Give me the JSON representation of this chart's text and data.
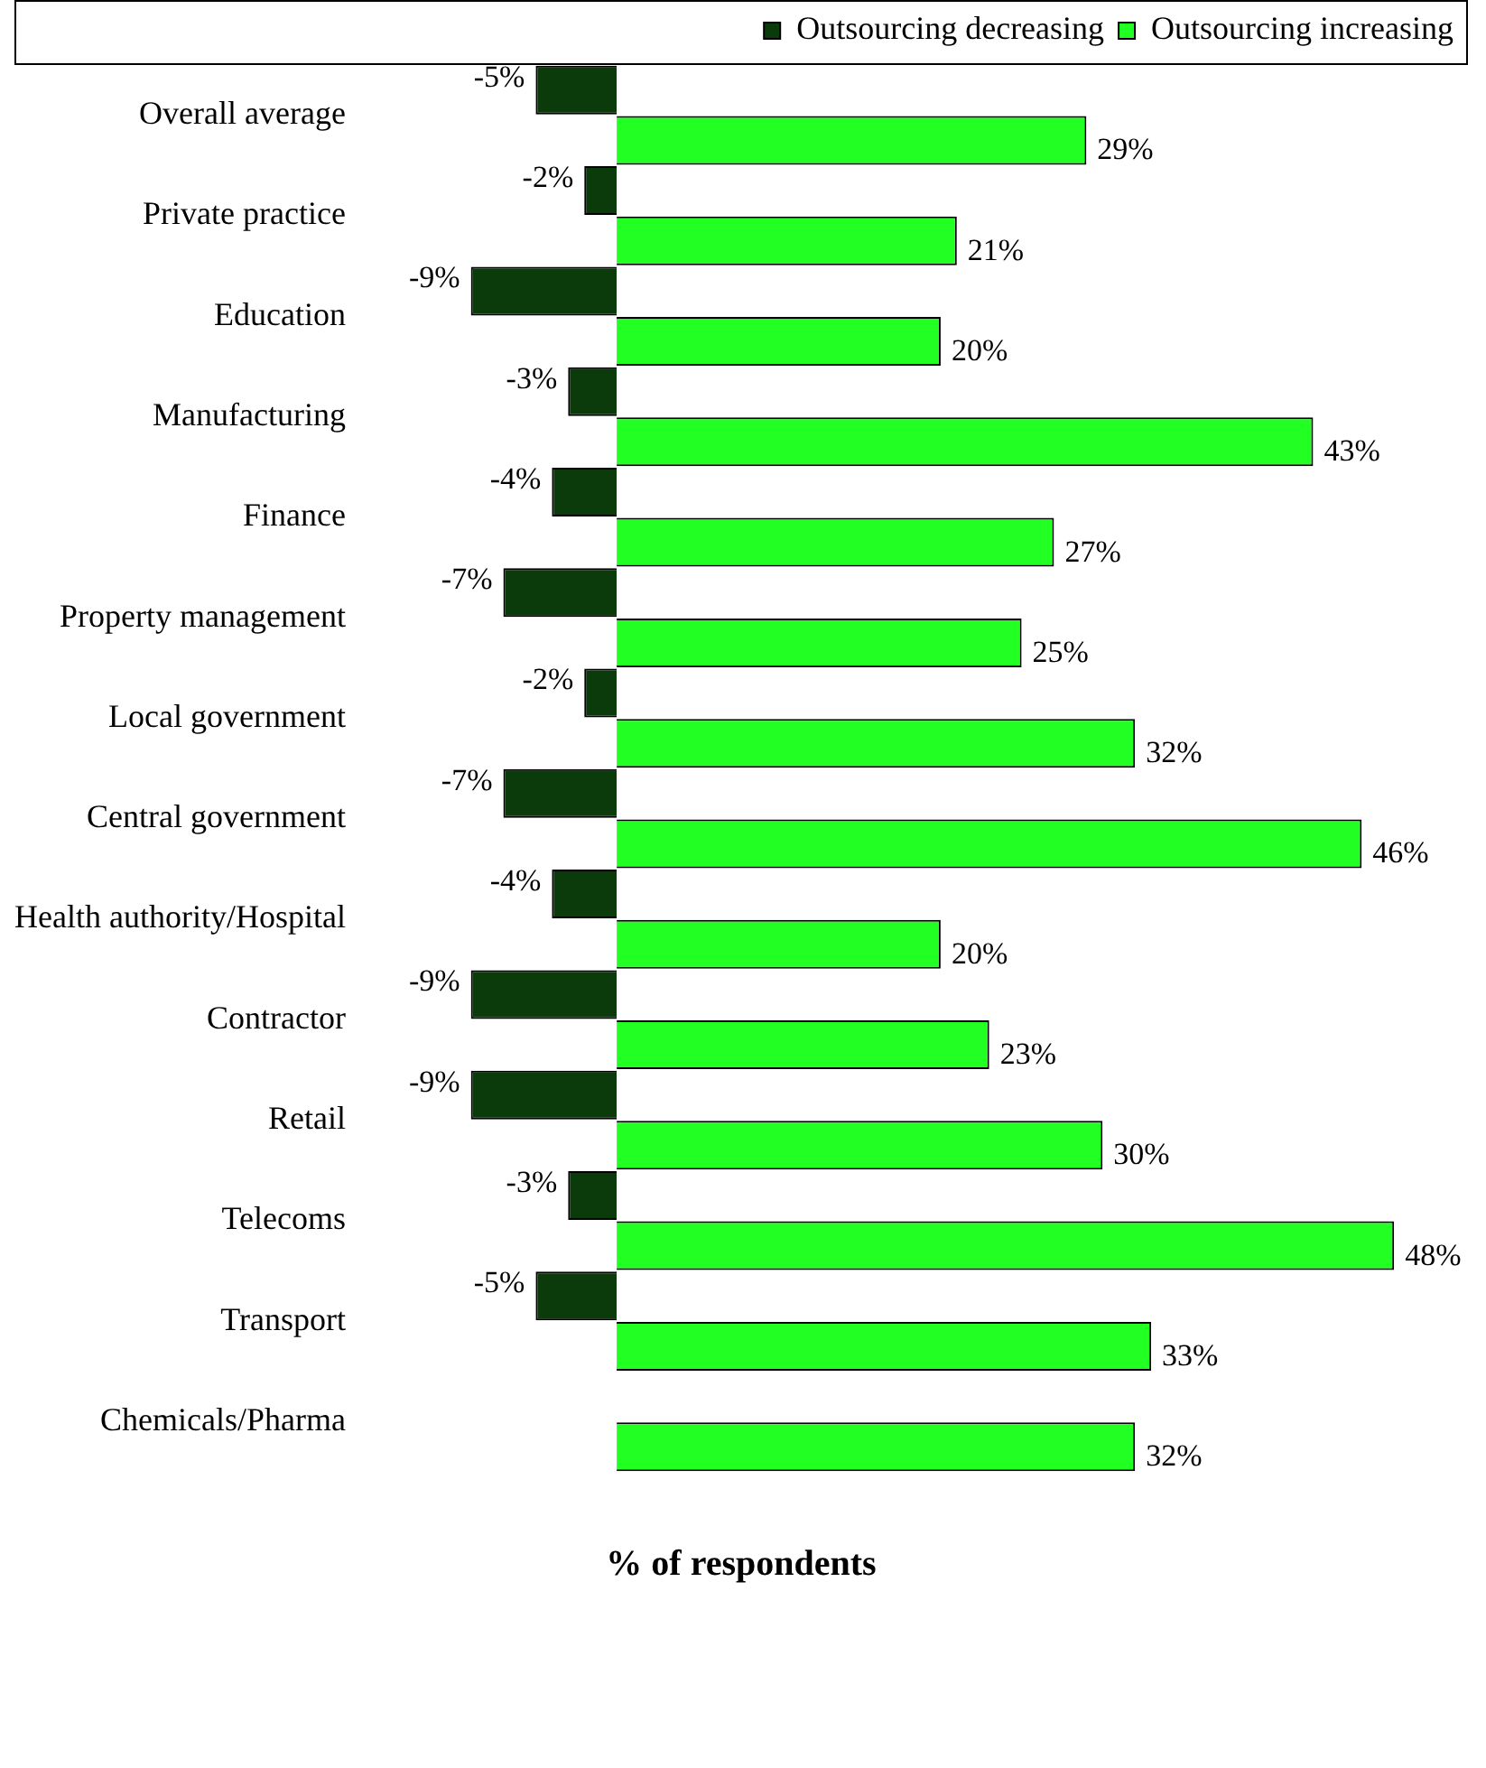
{
  "chart_data": {
    "type": "bar",
    "orientation": "horizontal",
    "xlabel": "% of respondents",
    "categories": [
      "Overall average",
      "Private practice",
      "Education",
      "Manufacturing",
      "Finance",
      "Property management",
      "Local government",
      "Central government",
      "Health authority/Hospital",
      "Contractor",
      "Retail",
      "Telecoms",
      "Transport",
      "Chemicals/Pharma"
    ],
    "series": [
      {
        "name": "Outsourcing decreasing",
        "color": "#0b3a0b",
        "values": [
          -5,
          -2,
          -9,
          -3,
          -4,
          -7,
          -2,
          -7,
          -4,
          -9,
          -9,
          -3,
          -5,
          null
        ],
        "value_labels": [
          "-5%",
          "-2%",
          "-9%",
          "-3%",
          "-4%",
          "-7%",
          "-2%",
          "-7%",
          "-4%",
          "-9%",
          "-9%",
          "-3%",
          "-5%",
          null
        ]
      },
      {
        "name": "Outsourcing increasing",
        "color": "#22ff22",
        "values": [
          29,
          21,
          20,
          43,
          27,
          25,
          32,
          46,
          20,
          23,
          30,
          48,
          33,
          32
        ],
        "value_labels": [
          "29%",
          "21%",
          "20%",
          "43%",
          "27%",
          "25%",
          "32%",
          "46%",
          "20%",
          "23%",
          "30%",
          "48%",
          "33%",
          "32%"
        ]
      }
    ],
    "legend": "top right"
  }
}
